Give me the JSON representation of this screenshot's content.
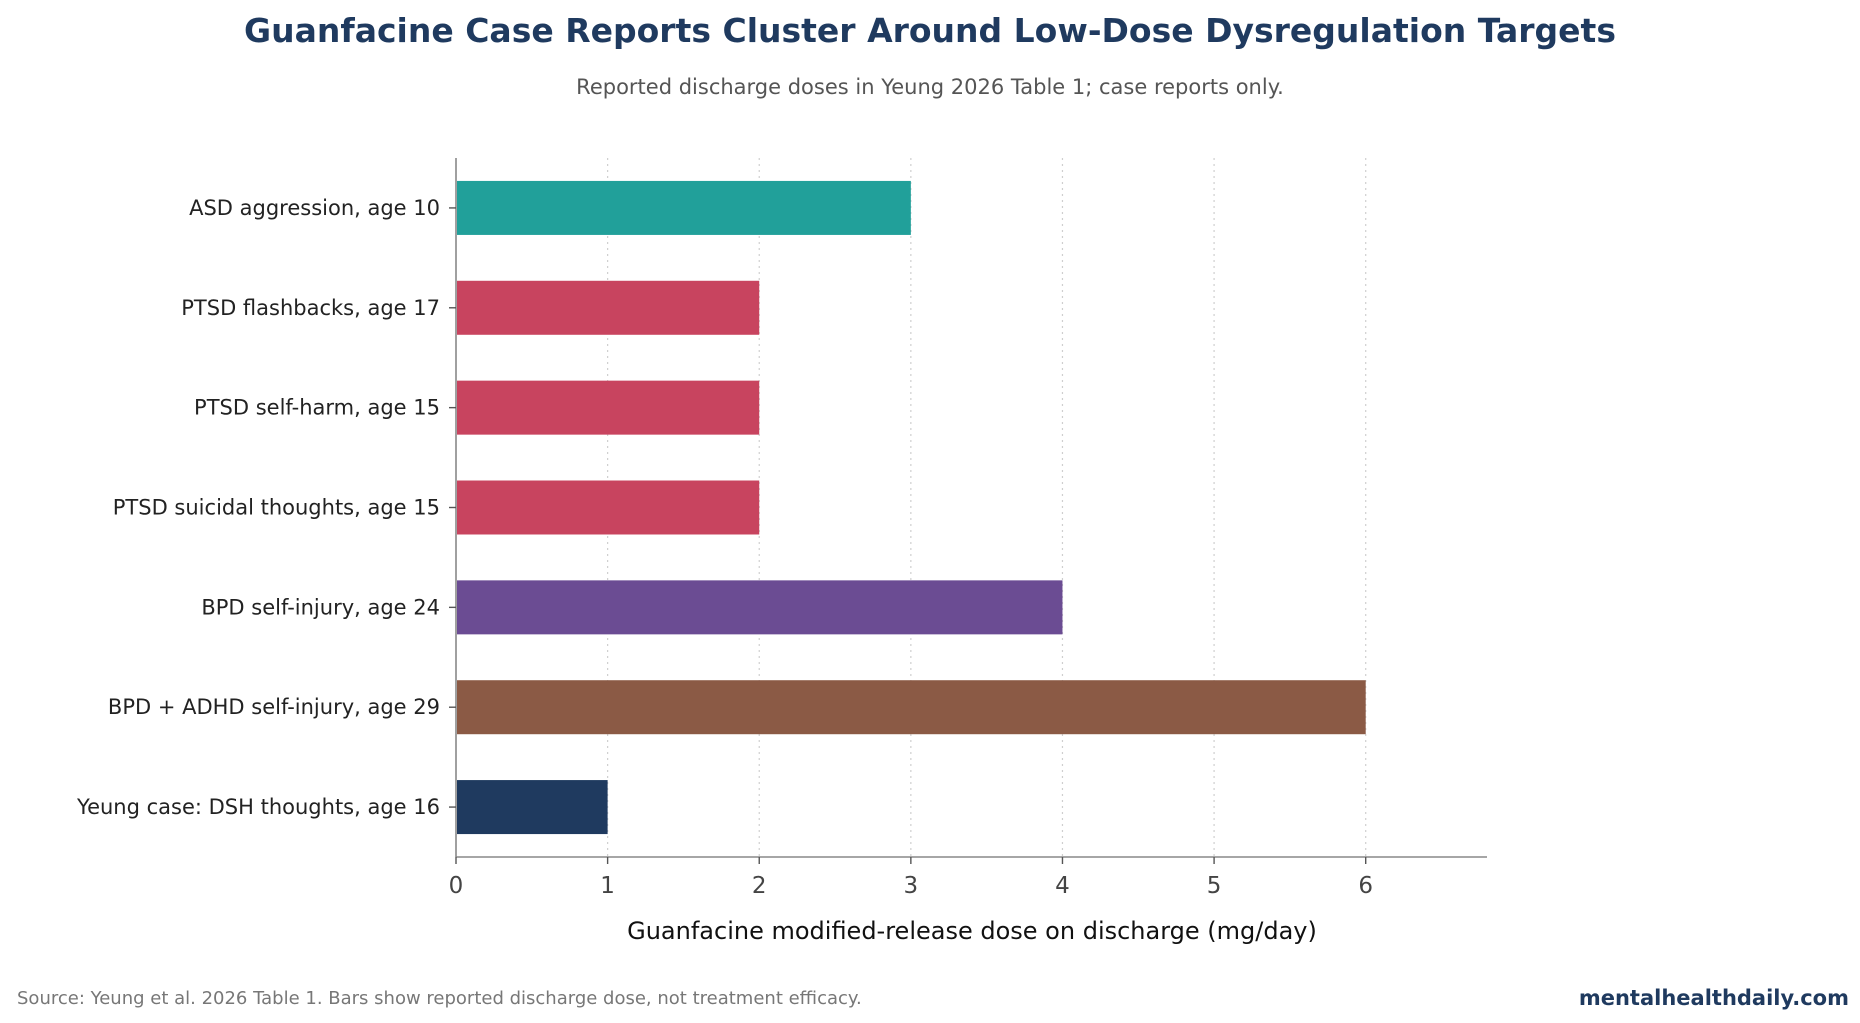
{
  "chart_data": {
    "type": "bar",
    "orientation": "horizontal",
    "title": "Guanfacine Case Reports Cluster Around Low-Dose Dysregulation Targets",
    "subtitle": "Reported discharge doses in Yeung 2026 Table 1; case reports only.",
    "xlabel": "Guanfacine modified-release dose on discharge (mg/day)",
    "ylabel": "",
    "xlim": [
      0,
      6.8
    ],
    "xticks": [
      0,
      1,
      2,
      3,
      4,
      5,
      6
    ],
    "grid": "vertical dotted",
    "categories": [
      "ASD aggression, age 10",
      "PTSD flashbacks, age 17",
      "PTSD self-harm, age 15",
      "PTSD suicidal thoughts, age 15",
      "BPD self-injury, age 24",
      "BPD + ADHD self-injury, age 29",
      "Yeung case: DSH thoughts, age 16"
    ],
    "values": [
      3,
      2,
      2,
      2,
      4,
      6,
      1
    ],
    "colors": [
      "#21a09a",
      "#c8445f",
      "#c8445f",
      "#c8445f",
      "#6b4c93",
      "#8b5a45",
      "#1f3a5f"
    ]
  },
  "footer": {
    "source": "Source: Yeung et al. 2026 Table 1. Bars show reported discharge dose, not treatment efficacy.",
    "brand": "mentalhealthdaily.com"
  }
}
